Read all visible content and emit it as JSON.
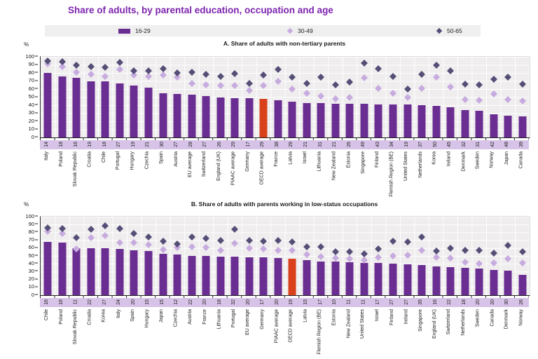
{
  "title": "Share of adults, by parental education, occupation and age",
  "colors": {
    "title": "#7c24ad",
    "bar": "#6a2d91",
    "highlight_bar": "#d8411c",
    "diamond_30_49": "#c7abdf",
    "diamond_50_65": "#554e76",
    "legend_bg": "#efeff0",
    "strip_bg": "#d7c3e8",
    "plot_bg": "#efedee"
  },
  "legend": {
    "items": [
      {
        "label": "16-29",
        "marker": "bar"
      },
      {
        "label": "30-49",
        "marker": "diamond-light"
      },
      {
        "label": "50-65",
        "marker": "diamond-dark"
      }
    ]
  },
  "y_axis": {
    "unit": "%",
    "ticks": [
      100,
      90,
      80,
      70,
      60,
      50,
      40,
      30,
      20,
      10,
      0
    ]
  },
  "chart_data": [
    {
      "type": "bar",
      "panel": "A",
      "title": "A. Share of adults with non-tertiary parents",
      "ylabel": "%",
      "ylim": [
        0,
        100
      ],
      "grid": true,
      "highlight_category": "OECD average",
      "categories": [
        "Italy",
        "Poland",
        "Slovak Republic",
        "Croatia",
        "Chile",
        "Portugal",
        "Hungary",
        "Czechia",
        "Spain",
        "Austria",
        "EU average",
        "Switzerland",
        "England (UK)",
        "PIAAC average",
        "Germany",
        "OECD average",
        "France",
        "Latvia",
        "Israel",
        "Lithuania",
        "New Zealand",
        "Estonia",
        "Singapore",
        "Finland",
        "Flemish Region (BE)",
        "United States",
        "Netherlands",
        "Korea",
        "Ireland",
        "Denmark",
        "Sweden",
        "Norway",
        "Japan",
        "Canada"
      ],
      "value_labels": [
        14,
        18,
        16,
        19,
        18,
        27,
        19,
        21,
        30,
        27,
        28,
        27,
        26,
        29,
        17,
        29,
        38,
        29,
        21,
        31,
        21,
        26,
        49,
        43,
        34,
        19,
        37,
        50,
        45,
        32,
        31,
        42,
        48,
        39
      ],
      "series": [
        {
          "name": "16-29",
          "type": "bar",
          "values": [
            80,
            76,
            74,
            70,
            70,
            67,
            64,
            62,
            55,
            54,
            53,
            51,
            50,
            49,
            49,
            48,
            46,
            44,
            43,
            43,
            42,
            42,
            42,
            41,
            41,
            41,
            40,
            39,
            37,
            34,
            33,
            29,
            27,
            26
          ]
        },
        {
          "name": "30-49",
          "type": "diamond",
          "values": [
            91,
            88,
            81,
            78,
            76,
            84,
            77,
            76,
            77,
            75,
            67,
            65,
            64,
            64,
            58,
            64,
            70,
            60,
            55,
            51,
            48,
            50,
            74,
            61,
            55,
            50,
            61,
            75,
            63,
            47,
            46,
            54,
            47,
            45
          ]
        },
        {
          "name": "50-65",
          "type": "diamond",
          "values": [
            95,
            94,
            90,
            88,
            87,
            93,
            83,
            83,
            85,
            80,
            81,
            78,
            76,
            79,
            67,
            77,
            84,
            75,
            67,
            75,
            65,
            69,
            92,
            85,
            76,
            60,
            78,
            90,
            83,
            66,
            65,
            72,
            75,
            66
          ]
        }
      ]
    },
    {
      "type": "bar",
      "panel": "B",
      "title": "B. Share of adults with parents working in low-status occupations",
      "ylabel": "%",
      "ylim": [
        0,
        100
      ],
      "grid": true,
      "highlight_category": "OECD average",
      "categories": [
        "Chile",
        "Poland",
        "Slovak Republic",
        "Croatia",
        "Korea",
        "Italy",
        "Spain",
        "Hungary",
        "Japan",
        "Czechia",
        "Austria",
        "France",
        "Lithuania",
        "Portugal",
        "EU average",
        "Germany",
        "PIAAC average",
        "OECD average",
        "Latvia",
        "Flemish Region (BE)",
        "Estonia",
        "New Zealand",
        "United States",
        "Israel",
        "Finland",
        "Ireland",
        "Singapore",
        "England (UK)",
        "Switzerland",
        "Netherlands",
        "Sweden",
        "Canada",
        "Denmark",
        "Norway"
      ],
      "value_labels": [
        16,
        16,
        11,
        22,
        27,
        24,
        20,
        15,
        15,
        12,
        22,
        20,
        18,
        32,
        20,
        17,
        20,
        19,
        15,
        17,
        10,
        11,
        11,
        17,
        27,
        27,
        35,
        16,
        22,
        18,
        20,
        20,
        30,
        26
      ],
      "series": [
        {
          "name": "16-29",
          "type": "bar",
          "values": [
            68,
            67,
            60,
            60,
            60,
            59,
            57,
            56,
            53,
            52,
            50,
            50,
            49,
            49,
            48,
            48,
            47,
            46,
            45,
            43,
            43,
            42,
            41,
            41,
            40,
            39,
            38,
            37,
            36,
            35,
            34,
            32,
            31,
            26
          ]
        },
        {
          "name": "30-49",
          "type": "diamond",
          "values": [
            81,
            79,
            59,
            73,
            76,
            67,
            67,
            64,
            58,
            61,
            62,
            61,
            57,
            66,
            60,
            59,
            57,
            57,
            52,
            49,
            47,
            46,
            45,
            48,
            50,
            51,
            57,
            48,
            47,
            42,
            40,
            41,
            46,
            41
          ]
        },
        {
          "name": "50-65",
          "type": "diamond",
          "values": [
            86,
            85,
            73,
            84,
            88,
            85,
            79,
            74,
            69,
            65,
            74,
            72,
            70,
            84,
            70,
            69,
            70,
            68,
            62,
            62,
            55,
            55,
            53,
            59,
            69,
            68,
            74,
            56,
            60,
            57,
            57,
            54,
            63,
            55
          ]
        }
      ]
    }
  ]
}
